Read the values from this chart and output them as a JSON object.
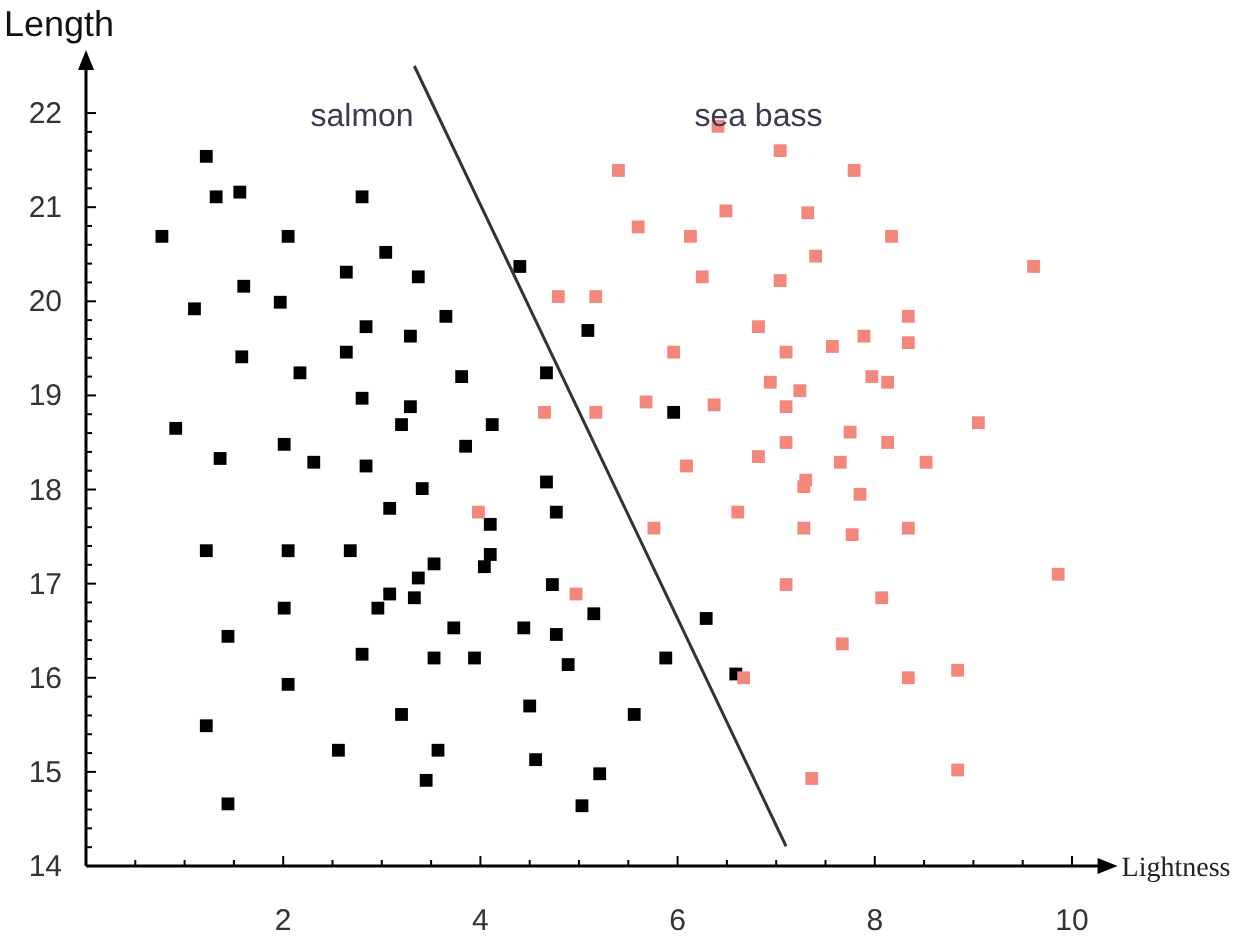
{
  "chart_data": {
    "type": "scatter",
    "xlabel": "Lightness",
    "ylabel": "Length",
    "marker": "square",
    "grid": false,
    "xlim": [
      0,
      10.3
    ],
    "ylim": [
      14,
      22.5
    ],
    "xticks": [
      {
        "value": 0.5,
        "label": null
      },
      {
        "value": 1,
        "label": null
      },
      {
        "value": 1.5,
        "label": null
      },
      2,
      {
        "value": 2.5,
        "label": null
      },
      {
        "value": 3,
        "label": null
      },
      {
        "value": 3.5,
        "label": null
      },
      4,
      {
        "value": 4.5,
        "label": null
      },
      {
        "value": 5,
        "label": null
      },
      {
        "value": 5.5,
        "label": null
      },
      6,
      {
        "value": 6.5,
        "label": null
      },
      {
        "value": 7,
        "label": null
      },
      {
        "value": 7.5,
        "label": null
      },
      8,
      {
        "value": 8.5,
        "label": null
      },
      {
        "value": 9,
        "label": null
      },
      {
        "value": 9.5,
        "label": null
      },
      10
    ],
    "yticks": [
      14,
      {
        "value": 14.2,
        "label": null
      },
      {
        "value": 14.4,
        "label": null
      },
      {
        "value": 14.6,
        "label": null
      },
      {
        "value": 14.8,
        "label": null
      },
      15,
      {
        "value": 15.2,
        "label": null
      },
      {
        "value": 15.4,
        "label": null
      },
      {
        "value": 15.6,
        "label": null
      },
      {
        "value": 15.8,
        "label": null
      },
      16,
      {
        "value": 16.2,
        "label": null
      },
      {
        "value": 16.4,
        "label": null
      },
      {
        "value": 16.6,
        "label": null
      },
      {
        "value": 16.8,
        "label": null
      },
      17,
      {
        "value": 17.2,
        "label": null
      },
      {
        "value": 17.4,
        "label": null
      },
      {
        "value": 17.6,
        "label": null
      },
      {
        "value": 17.8,
        "label": null
      },
      18,
      {
        "value": 18.2,
        "label": null
      },
      {
        "value": 18.4,
        "label": null
      },
      {
        "value": 18.6,
        "label": null
      },
      {
        "value": 18.8,
        "label": null
      },
      19,
      {
        "value": 19.2,
        "label": null
      },
      {
        "value": 19.4,
        "label": null
      },
      {
        "value": 19.6,
        "label": null
      },
      {
        "value": 19.8,
        "label": null
      },
      20,
      {
        "value": 20.2,
        "label": null
      },
      {
        "value": 20.4,
        "label": null
      },
      {
        "value": 20.6,
        "label": null
      },
      {
        "value": 20.8,
        "label": null
      },
      21,
      {
        "value": 21.2,
        "label": null
      },
      {
        "value": 21.4,
        "label": null
      },
      {
        "value": 21.6,
        "label": null
      },
      {
        "value": 21.8,
        "label": null
      },
      22
    ],
    "series": [
      {
        "name": "salmon",
        "color": "#000000",
        "x": [
          1.22,
          1.32,
          1.56,
          2.8,
          0.77,
          2.05,
          3.04,
          2.64,
          3.37,
          1.6,
          1.97,
          1.1,
          3.65,
          2.84,
          3.29,
          1.58,
          2.64,
          2.17,
          3.81,
          2.8,
          3.29,
          3.2,
          0.91,
          3.85,
          2.01,
          1.36,
          2.31,
          2.84,
          3.41,
          1.22,
          2.05,
          2.68,
          3.08,
          3.53,
          3.37,
          3.08,
          3.33,
          2.96,
          2.01,
          1.44,
          3.73,
          2.8,
          3.53,
          3.94,
          2.05,
          3.2,
          1.22,
          2.56,
          3.57,
          3.45,
          1.44,
          4.1,
          4.1,
          4.04,
          4.77,
          4.73,
          5.15,
          4.44,
          4.77,
          4.89,
          5.88,
          6.29,
          6.59,
          4.5,
          5.56,
          4.56,
          5.21,
          5.03,
          4.67,
          4.4,
          5.09,
          4.67,
          5.96,
          4.12
        ],
        "values": [
          21.54,
          21.11,
          21.16,
          21.11,
          20.69,
          20.69,
          20.52,
          20.31,
          20.26,
          20.16,
          19.99,
          19.92,
          19.84,
          19.73,
          19.63,
          19.41,
          19.46,
          19.24,
          19.2,
          18.97,
          18.88,
          18.69,
          18.65,
          18.46,
          18.48,
          18.33,
          18.29,
          18.25,
          18.01,
          17.35,
          17.35,
          17.35,
          17.8,
          17.21,
          17.06,
          16.89,
          16.85,
          16.74,
          16.74,
          16.44,
          16.53,
          16.25,
          16.21,
          16.21,
          15.93,
          15.61,
          15.49,
          15.23,
          15.23,
          14.91,
          14.66,
          17.63,
          17.31,
          17.18,
          17.76,
          16.99,
          16.68,
          16.53,
          16.46,
          16.14,
          16.21,
          16.63,
          16.04,
          15.7,
          15.61,
          15.13,
          14.98,
          14.64,
          18.08,
          20.37,
          19.69,
          19.24,
          18.82,
          18.69
        ]
      },
      {
        "name": "sea bass",
        "color": "#f4877c",
        "x": [
          6.41,
          5.4,
          7.04,
          7.79,
          5.6,
          6.13,
          6.49,
          7.32,
          7.4,
          6.25,
          7.04,
          4.79,
          5.17,
          5.96,
          6.82,
          7.1,
          7.57,
          6.94,
          7.24,
          4.65,
          5.17,
          5.68,
          6.37,
          7.1,
          7.1,
          7.75,
          6.09,
          6.82,
          7.65,
          7.3,
          8.17,
          9.61,
          8.34,
          7.89,
          8.34,
          7.97,
          8.13,
          9.05,
          8.13,
          8.52,
          7.85,
          7.77,
          8.34,
          9.86,
          8.07,
          7.67,
          8.34,
          8.84,
          8.84,
          3.98,
          5.76,
          6.61,
          7.28,
          7.28,
          4.97,
          7.1,
          6.67,
          7.36
        ],
        "values": [
          21.86,
          21.39,
          21.6,
          21.39,
          20.79,
          20.69,
          20.96,
          20.94,
          20.48,
          20.26,
          20.22,
          20.05,
          20.05,
          19.46,
          19.73,
          19.46,
          19.52,
          19.14,
          19.05,
          18.82,
          18.82,
          18.93,
          18.9,
          18.88,
          18.5,
          18.61,
          18.25,
          18.35,
          18.29,
          18.1,
          20.69,
          20.37,
          19.84,
          19.63,
          19.56,
          19.2,
          19.14,
          18.71,
          18.5,
          18.29,
          17.95,
          17.52,
          17.59,
          17.1,
          16.85,
          16.36,
          16,
          16.08,
          15.02,
          17.76,
          17.59,
          17.76,
          18.03,
          17.59,
          16.89,
          16.99,
          16,
          14.93
        ]
      },
      {
        "type": "line",
        "marker": "none",
        "color": "#333333",
        "x": [
          3.33,
          7.1
        ],
        "values": [
          22.5,
          14.21
        ]
      }
    ]
  }
}
